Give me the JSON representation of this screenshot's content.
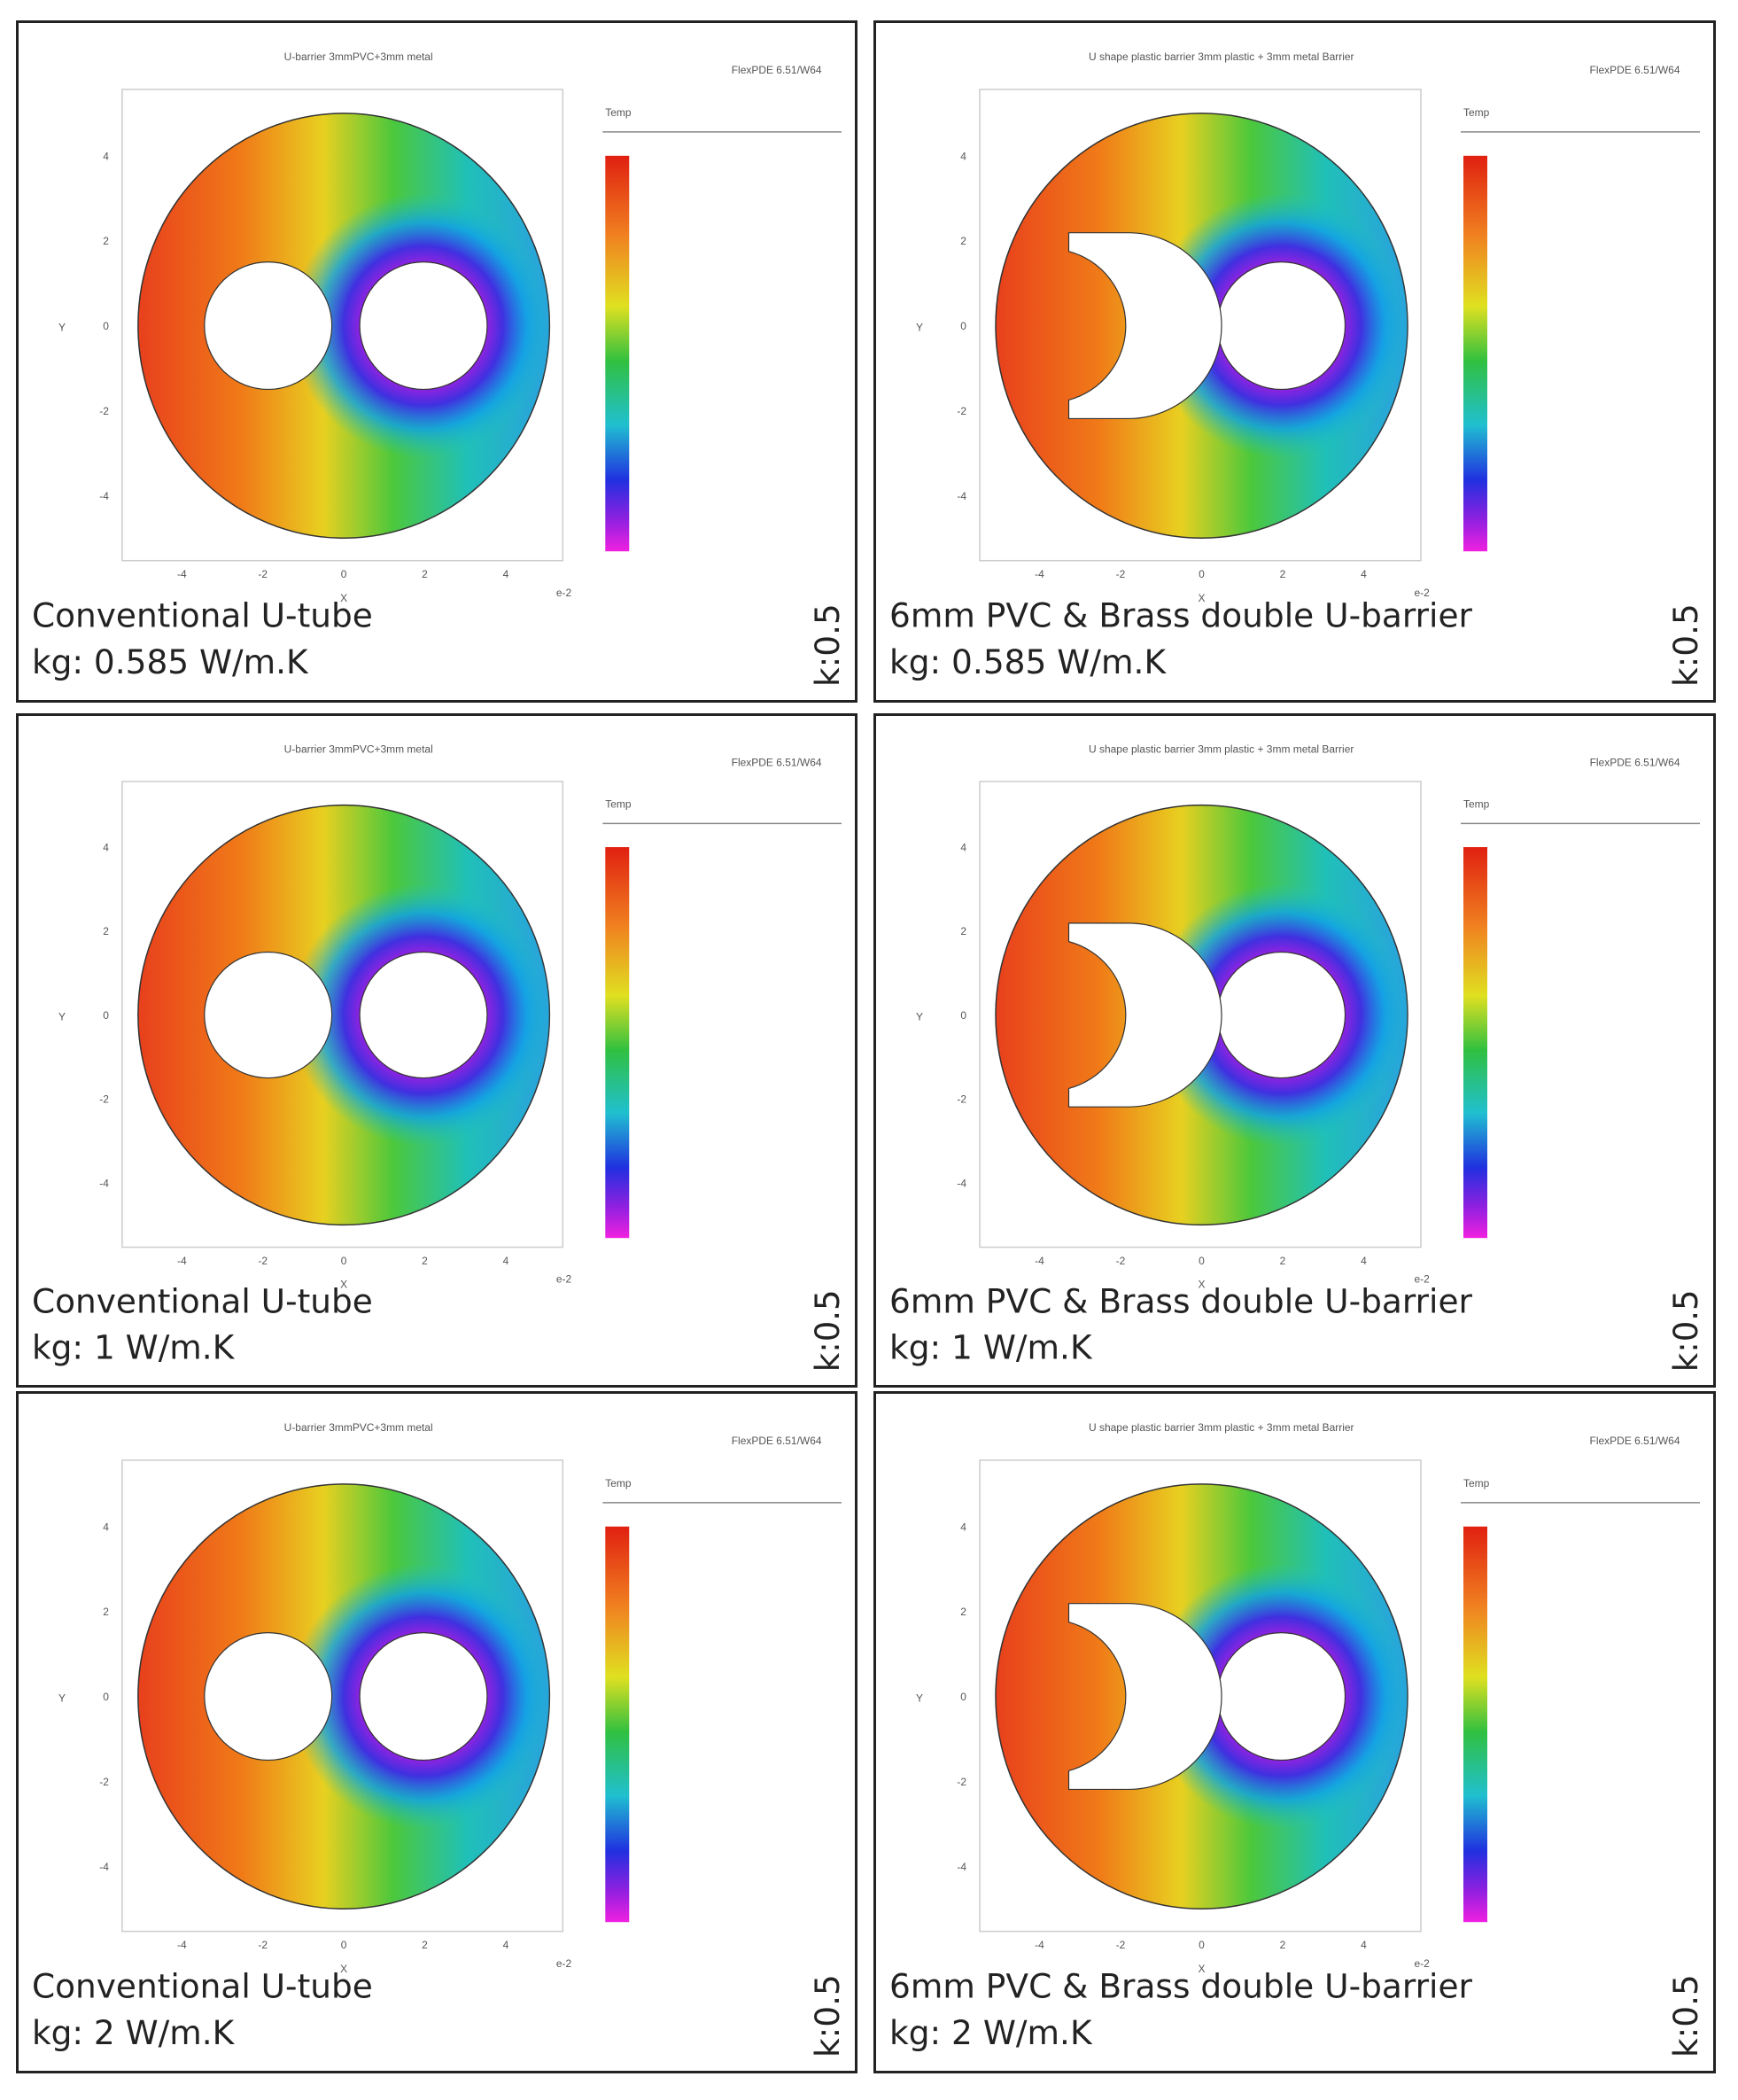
{
  "panels": [
    {
      "plot_title": "U-barrier 3mmPVC+3mm metal",
      "caption_line1": "Conventional U-tube",
      "caption_line2": "kg: 0.585 W/m.K",
      "k_label": "k:0.5",
      "barrier": false
    },
    {
      "plot_title": "U shape plastic barrier 3mm plastic + 3mm metal Barrier",
      "caption_line1": "6mm PVC & Brass double U-barrier",
      "caption_line2": "kg: 0.585 W/m.K",
      "k_label": "k:0.5",
      "barrier": true
    },
    {
      "plot_title": "U-barrier 3mmPVC+3mm metal",
      "caption_line1": "Conventional U-tube",
      "caption_line2": "kg: 1 W/m.K",
      "k_label": "k:0.5",
      "barrier": false
    },
    {
      "plot_title": "U shape plastic barrier 3mm plastic + 3mm metal Barrier",
      "caption_line1": "6mm PVC & Brass double U-barrier",
      "caption_line2": "kg: 1 W/m.K",
      "k_label": "k:0.5",
      "barrier": true
    },
    {
      "plot_title": "U-barrier 3mmPVC+3mm metal",
      "caption_line1": "Conventional U-tube",
      "caption_line2": "kg: 2 W/m.K",
      "k_label": "k:0.5",
      "barrier": false
    },
    {
      "plot_title": "U shape plastic barrier 3mm plastic + 3mm metal Barrier",
      "caption_line1": "6mm PVC & Brass double U-barrier",
      "caption_line2": "kg: 2 W/m.K",
      "k_label": "k:0.5",
      "barrier": true
    }
  ],
  "software": "FlexPDE 6.51/W64",
  "legend_title": "Temp",
  "x_label": "X",
  "y_label": "Y",
  "x_scale": "e-2",
  "xticks": [
    "-4",
    "-2",
    "0",
    "2",
    "4"
  ],
  "yticks": [
    "4",
    "2",
    "0",
    "-2",
    "-4"
  ]
}
